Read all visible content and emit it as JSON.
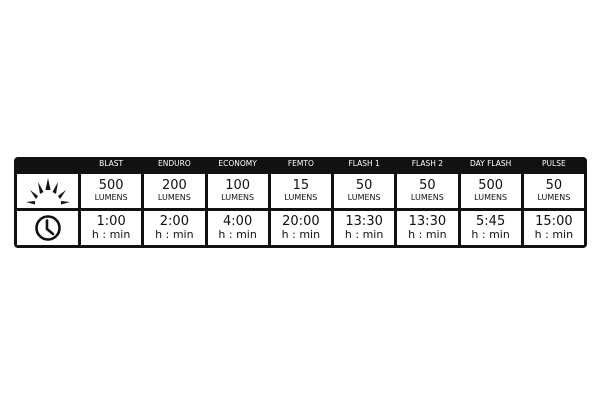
{
  "colors": {
    "border": "#111111",
    "cell": "#ffffff"
  },
  "icons": {
    "brightness": "sun-rays-icon",
    "runtime": "clock-icon"
  },
  "modes": [
    {
      "name": "BLAST",
      "lumens": "500",
      "lumens_unit": "LUMENS",
      "time": "1:00",
      "time_unit": "h : min"
    },
    {
      "name": "ENDURO",
      "lumens": "200",
      "lumens_unit": "LUMENS",
      "time": "2:00",
      "time_unit": "h : min"
    },
    {
      "name": "ECONOMY",
      "lumens": "100",
      "lumens_unit": "LUMENS",
      "time": "4:00",
      "time_unit": "h : min"
    },
    {
      "name": "FEMTO",
      "lumens": "15",
      "lumens_unit": "LUMENS",
      "time": "20:00",
      "time_unit": "h : min"
    },
    {
      "name": "FLASH 1",
      "lumens": "50",
      "lumens_unit": "LUMENS",
      "time": "13:30",
      "time_unit": "h : min"
    },
    {
      "name": "FLASH 2",
      "lumens": "50",
      "lumens_unit": "LUMENS",
      "time": "13:30",
      "time_unit": "h : min"
    },
    {
      "name": "DAY FLASH",
      "lumens": "500",
      "lumens_unit": "LUMENS",
      "time": "5:45",
      "time_unit": "h : min"
    },
    {
      "name": "PULSE",
      "lumens": "50",
      "lumens_unit": "LUMENS",
      "time": "15:00",
      "time_unit": "h : min"
    }
  ]
}
